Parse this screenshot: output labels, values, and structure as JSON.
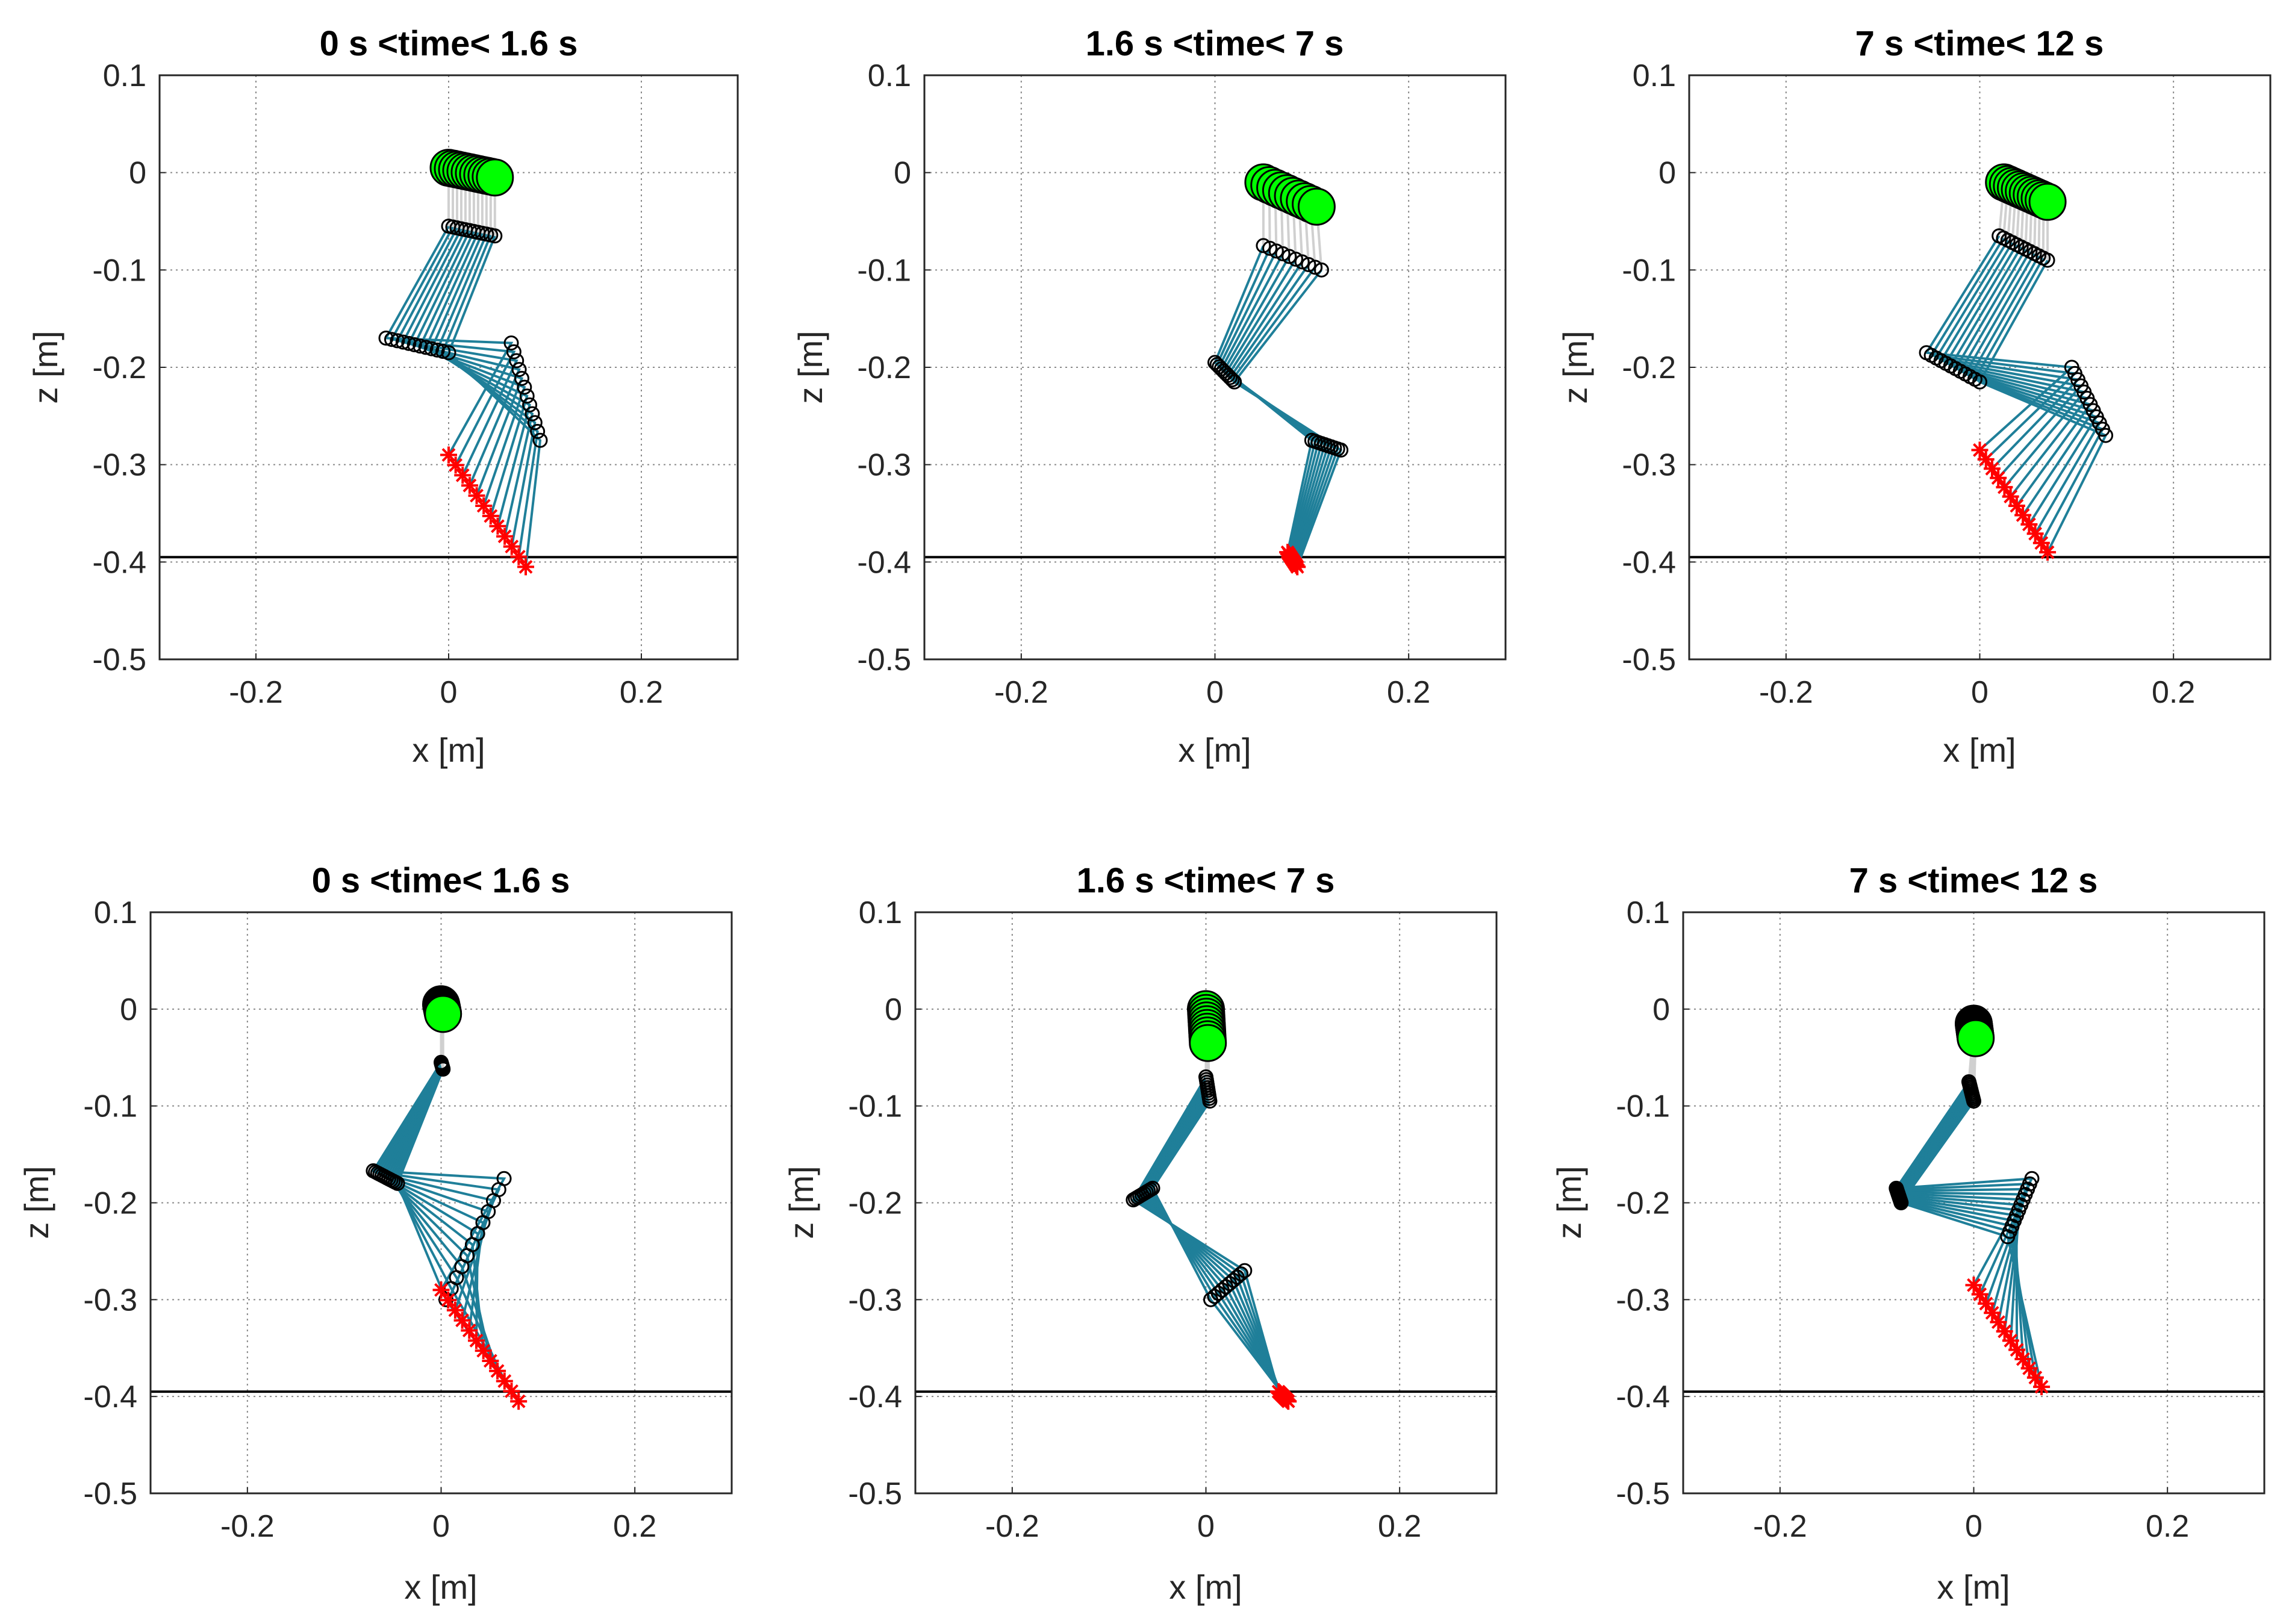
{
  "figure": {
    "colors": {
      "link": "#1f7f99",
      "joint_edge": "#000000",
      "hip_fill": "#00ff00",
      "foot": "#ff0000",
      "torso": "#d0d0d0",
      "ground": "#000000",
      "grid": "#8a8a8a"
    }
  },
  "chart_data": [
    {
      "type": "scatter",
      "panel": "top-left",
      "title": "0 s <time< 1.6 s",
      "xlabel": "x [m]",
      "ylabel": "z [m]",
      "xlim": [
        -0.3,
        0.3
      ],
      "ylim": [
        -0.5,
        0.1
      ],
      "xticks": [
        -0.2,
        0,
        0.2
      ],
      "yticks": [
        0.1,
        0,
        -0.1,
        -0.2,
        -0.3,
        -0.4,
        -0.5
      ],
      "xtick_labels": [
        "-0.2",
        "0",
        "0.2"
      ],
      "ytick_labels": [
        "0.1",
        "0",
        "-0.1",
        "-0.2",
        "-0.3",
        "-0.4",
        "-0.5"
      ],
      "grid": true,
      "ground_z": -0.395,
      "hip_start": [
        0.0,
        0.005
      ],
      "hip_end": [
        0.048,
        -0.005
      ],
      "knee_start": [
        0.0,
        -0.055
      ],
      "knee_end": [
        0.048,
        -0.065
      ],
      "ankle_start": [
        -0.065,
        -0.17
      ],
      "ankle_end": [
        0.0,
        -0.185
      ],
      "toe_start": [
        0.065,
        -0.175
      ],
      "toe_end": [
        0.095,
        -0.275
      ],
      "foot_start": [
        0.0,
        -0.29
      ],
      "foot_end": [
        0.08,
        -0.405
      ],
      "frames": 12
    },
    {
      "type": "scatter",
      "panel": "top-middle",
      "title": "1.6 s <time< 7 s",
      "xlabel": "x [m]",
      "ylabel": "z [m]",
      "xlim": [
        -0.3,
        0.3
      ],
      "ylim": [
        -0.5,
        0.1
      ],
      "xticks": [
        -0.2,
        0,
        0.2
      ],
      "yticks": [
        0.1,
        0,
        -0.1,
        -0.2,
        -0.3,
        -0.4,
        -0.5
      ],
      "xtick_labels": [
        "-0.2",
        "0",
        "0.2"
      ],
      "ytick_labels": [
        "0.1",
        "0",
        "-0.1",
        "-0.2",
        "-0.3",
        "-0.4",
        "-0.5"
      ],
      "grid": true,
      "ground_z": -0.395,
      "hip_start": [
        0.05,
        -0.01
      ],
      "hip_end": [
        0.105,
        -0.035
      ],
      "knee_start": [
        0.05,
        -0.075
      ],
      "knee_end": [
        0.11,
        -0.1
      ],
      "ankle_start": [
        0.0,
        -0.195
      ],
      "ankle_end": [
        0.02,
        -0.215
      ],
      "toe_start": [
        0.1,
        -0.275
      ],
      "toe_end": [
        0.13,
        -0.285
      ],
      "foot_start": [
        0.075,
        -0.39
      ],
      "foot_end": [
        0.085,
        -0.405
      ],
      "frames": 10
    },
    {
      "type": "scatter",
      "panel": "top-right",
      "title": "7 s <time< 12 s",
      "xlabel": "x [m]",
      "ylabel": "z [m]",
      "xlim": [
        -0.3,
        0.3
      ],
      "ylim": [
        -0.5,
        0.1
      ],
      "xticks": [
        -0.2,
        0,
        0.2
      ],
      "yticks": [
        0.1,
        0,
        -0.1,
        -0.2,
        -0.3,
        -0.4,
        -0.5
      ],
      "xtick_labels": [
        "-0.2",
        "0",
        "0.2"
      ],
      "ytick_labels": [
        "0.1",
        "0",
        "-0.1",
        "-0.2",
        "-0.3",
        "-0.4",
        "-0.5"
      ],
      "grid": true,
      "ground_z": -0.395,
      "hip_start": [
        0.025,
        -0.01
      ],
      "hip_end": [
        0.07,
        -0.03
      ],
      "knee_start": [
        0.02,
        -0.065
      ],
      "knee_end": [
        0.07,
        -0.09
      ],
      "ankle_start": [
        -0.055,
        -0.185
      ],
      "ankle_end": [
        0.0,
        -0.215
      ],
      "toe_start": [
        0.095,
        -0.2
      ],
      "toe_end": [
        0.13,
        -0.27
      ],
      "foot_start": [
        0.0,
        -0.285
      ],
      "foot_end": [
        0.07,
        -0.39
      ],
      "frames": 12
    },
    {
      "type": "scatter",
      "panel": "bottom-left",
      "title": "0 s <time< 1.6 s",
      "xlabel": "x [m]",
      "ylabel": "z [m]",
      "xlim": [
        -0.3,
        0.3
      ],
      "ylim": [
        -0.5,
        0.1
      ],
      "xticks": [
        -0.2,
        0,
        0.2
      ],
      "yticks": [
        0.1,
        0,
        -0.1,
        -0.2,
        -0.3,
        -0.4,
        -0.5
      ],
      "xtick_labels": [
        "-0.2",
        "0",
        "0.2"
      ],
      "ytick_labels": [
        "0.1",
        "0",
        "-0.1",
        "-0.2",
        "-0.3",
        "-0.4",
        "-0.5"
      ],
      "grid": true,
      "ground_z": -0.395,
      "hip_start": [
        0.0,
        0.005
      ],
      "hip_end": [
        0.002,
        -0.005
      ],
      "knee_start": [
        0.0,
        -0.055
      ],
      "knee_end": [
        0.002,
        -0.062
      ],
      "ankle_start": [
        -0.07,
        -0.167
      ],
      "ankle_end": [
        -0.045,
        -0.18
      ],
      "toe_start": [
        0.065,
        -0.175
      ],
      "toe_end": [
        0.005,
        -0.3
      ],
      "foot_start": [
        0.0,
        -0.29
      ],
      "foot_end": [
        0.08,
        -0.405
      ],
      "frames": 12
    },
    {
      "type": "scatter",
      "panel": "bottom-middle",
      "title": "1.6 s <time< 7 s",
      "xlabel": "x [m]",
      "ylabel": "z [m]",
      "xlim": [
        -0.3,
        0.3
      ],
      "ylim": [
        -0.5,
        0.1
      ],
      "xticks": [
        -0.2,
        0,
        0.2
      ],
      "yticks": [
        0.1,
        0,
        -0.1,
        -0.2,
        -0.3,
        -0.4,
        -0.5
      ],
      "xtick_labels": [
        "-0.2",
        "0",
        "0.2"
      ],
      "ytick_labels": [
        "0.1",
        "0",
        "-0.1",
        "-0.2",
        "-0.3",
        "-0.4",
        "-0.5"
      ],
      "grid": true,
      "ground_z": -0.395,
      "hip_start": [
        0.0,
        0.0
      ],
      "hip_end": [
        0.002,
        -0.035
      ],
      "knee_start": [
        0.0,
        -0.07
      ],
      "knee_end": [
        0.004,
        -0.095
      ],
      "ankle_start": [
        -0.075,
        -0.197
      ],
      "ankle_end": [
        -0.055,
        -0.185
      ],
      "toe_start": [
        0.04,
        -0.27
      ],
      "toe_end": [
        0.005,
        -0.3
      ],
      "foot_start": [
        0.075,
        -0.395
      ],
      "foot_end": [
        0.085,
        -0.405
      ],
      "frames": 10
    },
    {
      "type": "scatter",
      "panel": "bottom-right",
      "title": "7 s <time< 12 s",
      "xlabel": "x [m]",
      "ylabel": "z [m]",
      "xlim": [
        -0.3,
        0.3
      ],
      "ylim": [
        -0.5,
        0.1
      ],
      "xticks": [
        -0.2,
        0,
        0.2
      ],
      "yticks": [
        0.1,
        0,
        -0.1,
        -0.2,
        -0.3,
        -0.4,
        -0.5
      ],
      "xtick_labels": [
        "-0.2",
        "0",
        "0.2"
      ],
      "ytick_labels": [
        "0.1",
        "0",
        "-0.1",
        "-0.2",
        "-0.3",
        "-0.4",
        "-0.5"
      ],
      "grid": true,
      "ground_z": -0.395,
      "hip_start": [
        0.0,
        -0.015
      ],
      "hip_end": [
        0.002,
        -0.03
      ],
      "knee_start": [
        -0.005,
        -0.075
      ],
      "knee_end": [
        0.0,
        -0.095
      ],
      "ankle_start": [
        -0.08,
        -0.185
      ],
      "ankle_end": [
        -0.075,
        -0.2
      ],
      "toe_start": [
        0.06,
        -0.175
      ],
      "toe_end": [
        0.035,
        -0.235
      ],
      "foot_start": [
        0.0,
        -0.285
      ],
      "foot_end": [
        0.07,
        -0.39
      ],
      "frames": 12
    }
  ]
}
